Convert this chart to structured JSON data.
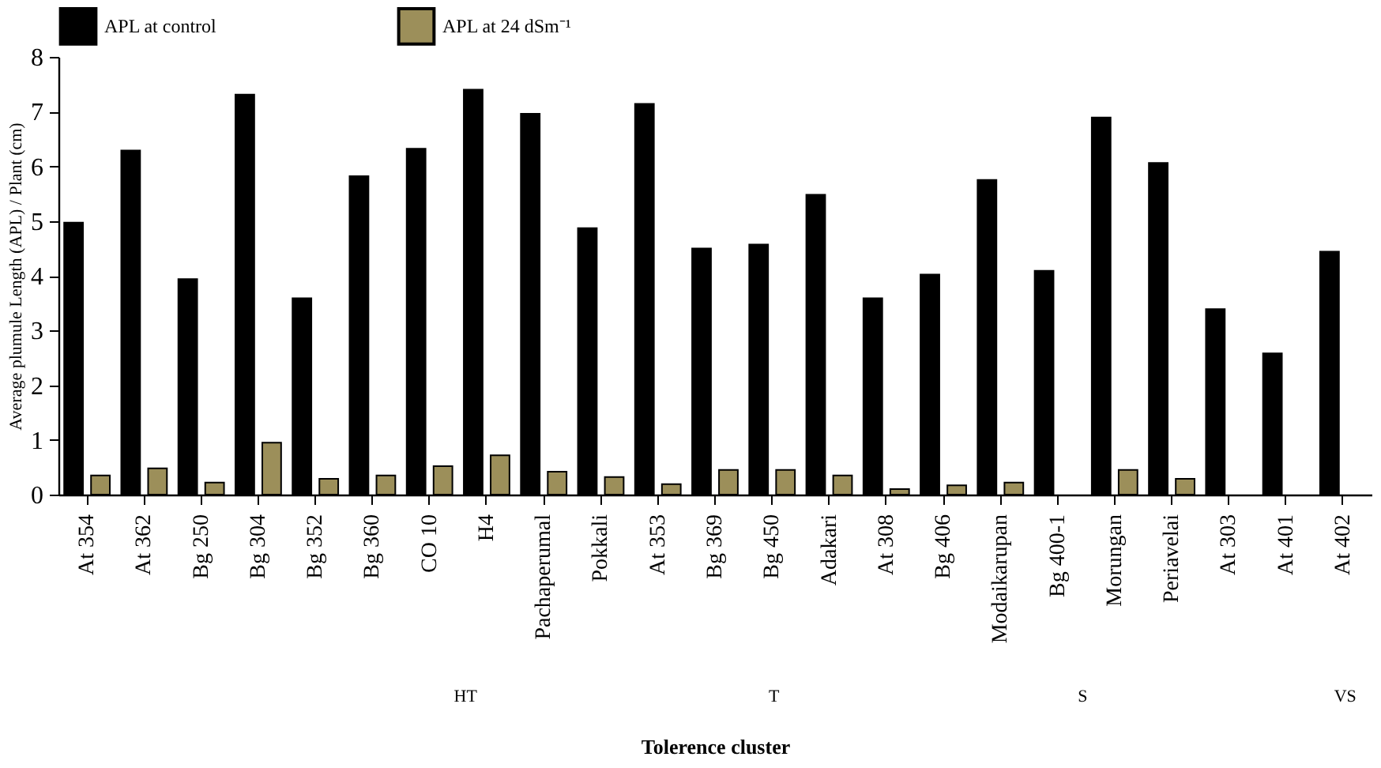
{
  "chart_data": {
    "type": "bar",
    "xlabel": "Tolerence cluster",
    "ylabel": "Average plumule Length (APL) / Plant (cm)",
    "categories": [
      "At 354",
      "At 362",
      "Bg 250",
      "Bg 304",
      "Bg 352",
      "Bg 360",
      "CO 10",
      "H4",
      "Pachaperumal",
      "Pokkali",
      "At 353",
      "Bg 369",
      "Bg 450",
      "Adakari",
      "At 308",
      "Bg 406",
      "Modaikarupan",
      "Bg 400-1",
      "Morungan",
      "Periavelai",
      "At 303",
      "At 401",
      "At 402"
    ],
    "series": [
      {
        "name": "APL at control",
        "color": "#000000",
        "values": [
          4.97,
          6.29,
          3.94,
          7.31,
          3.59,
          5.82,
          6.32,
          7.4,
          6.96,
          4.87,
          7.14,
          4.5,
          4.57,
          5.48,
          3.59,
          4.02,
          5.75,
          4.09,
          6.89,
          6.06,
          3.39,
          2.58,
          4.44
        ]
      },
      {
        "name": "APL at 24 dSm⁻¹",
        "color": "#9c8f5a",
        "values": [
          0.35,
          0.48,
          0.22,
          0.95,
          0.29,
          0.35,
          0.52,
          0.72,
          0.42,
          0.32,
          0.19,
          0.45,
          0.45,
          0.35,
          0.1,
          0.17,
          0.22,
          null,
          0.45,
          0.29,
          null,
          null,
          null
        ]
      }
    ],
    "annotations": [
      "HT",
      "T",
      "S",
      "VS"
    ],
    "ylim": [
      0,
      8
    ],
    "yticks": [
      0,
      1,
      2,
      3,
      4,
      5,
      6,
      7,
      8
    ],
    "grid": false,
    "legend": "top"
  }
}
